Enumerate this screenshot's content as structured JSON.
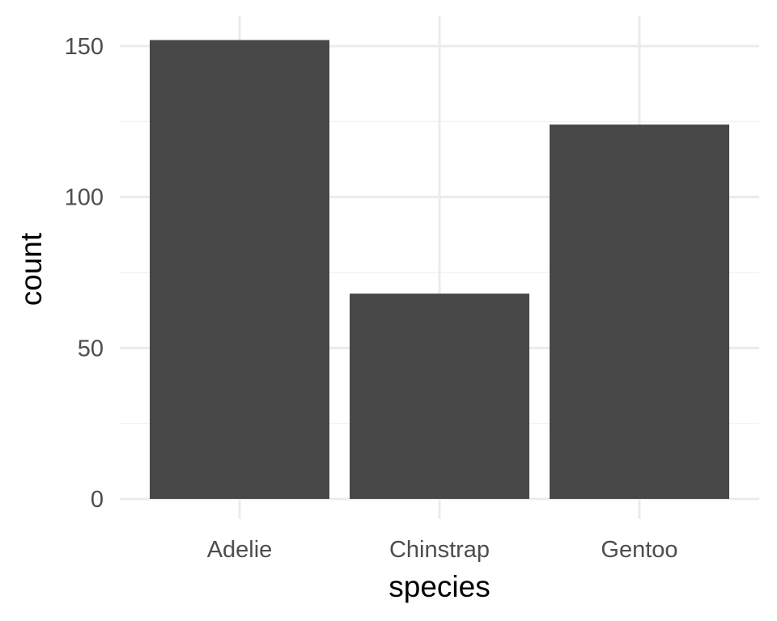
{
  "chart_data": {
    "type": "bar",
    "categories": [
      "Adelie",
      "Chinstrap",
      "Gentoo"
    ],
    "values": [
      152,
      68,
      124
    ],
    "xlabel": "species",
    "ylabel": "count",
    "ylim": [
      0,
      160
    ],
    "yticks": [
      0,
      50,
      100,
      150
    ],
    "yticks_labels": [
      "0",
      "50",
      "100",
      "150"
    ],
    "grid": true,
    "legend": "none",
    "colors": {
      "bar": "#474747",
      "grid_major": "#ebebeb",
      "grid_minor": "#f2f2f2",
      "background": "#ffffff"
    }
  }
}
